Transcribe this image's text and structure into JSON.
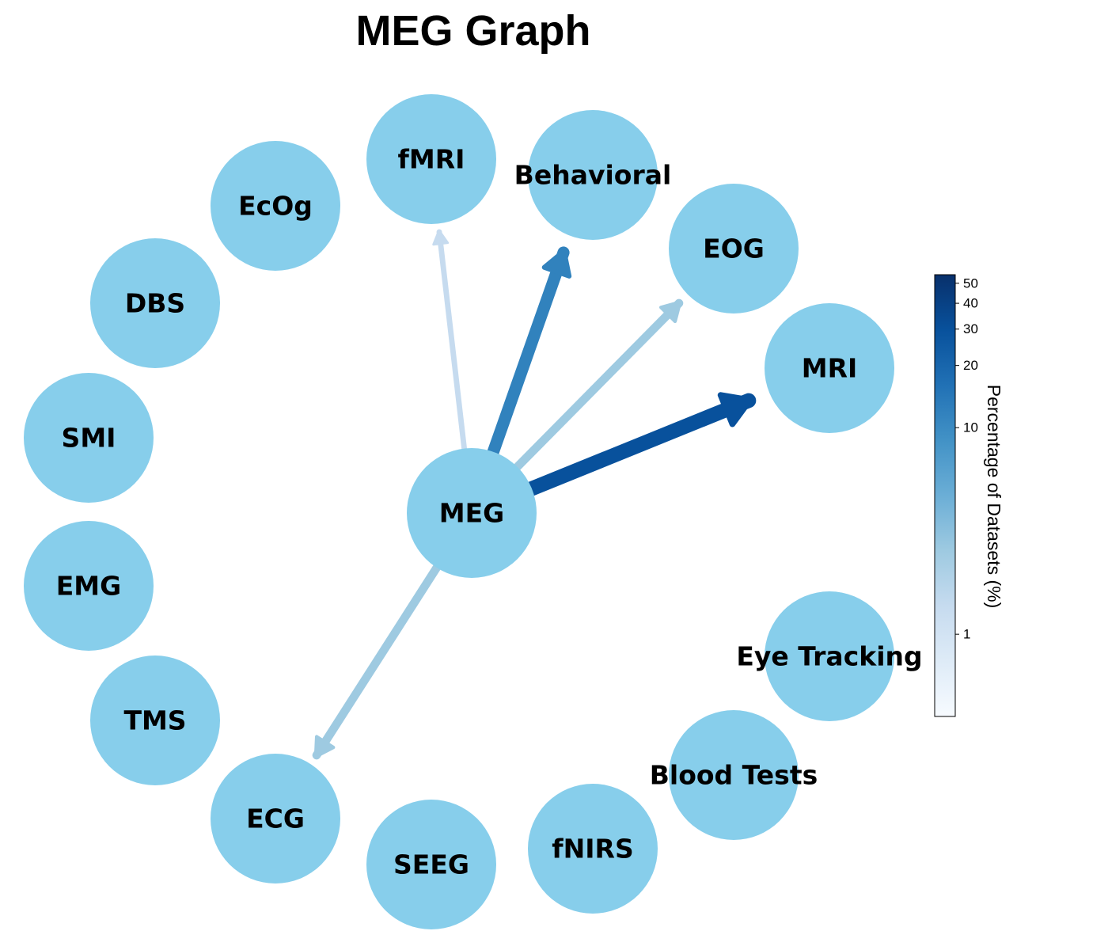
{
  "title": "MEG Graph",
  "center_node": "MEG",
  "nodes": [
    "EcOg",
    "fMRI",
    "Behavioral",
    "EOG",
    "MRI",
    "DBS",
    "SMI",
    "EMG",
    "TMS",
    "ECG",
    "SEEG",
    "fNIRS",
    "Blood Tests",
    "Eye Tracking"
  ],
  "node_color": "#87ceeb",
  "edges": [
    {
      "source": "MEG",
      "target": "fMRI",
      "percentage": 2,
      "color": "#c6dbef"
    },
    {
      "source": "MEG",
      "target": "Behavioral",
      "percentage": 15,
      "color": "#3182bd"
    },
    {
      "source": "MEG",
      "target": "EOG",
      "percentage": 5,
      "color": "#9ecae1"
    },
    {
      "source": "MEG",
      "target": "MRI",
      "percentage": 35,
      "color": "#08519c"
    },
    {
      "source": "MEG",
      "target": "ECG",
      "percentage": 5,
      "color": "#9ecae1"
    }
  ],
  "colorbar": {
    "label": "Percentage of Datasets (%)",
    "scale": "log",
    "ticks": [
      {
        "value": 1,
        "label": "1"
      },
      {
        "value": 10,
        "label": "10"
      },
      {
        "value": 20,
        "label": "20"
      },
      {
        "value": 30,
        "label": "30"
      },
      {
        "value": 40,
        "label": "40"
      },
      {
        "value": 50,
        "label": "50"
      }
    ],
    "range": [
      0.4,
      55
    ],
    "colormap": "Blues"
  }
}
